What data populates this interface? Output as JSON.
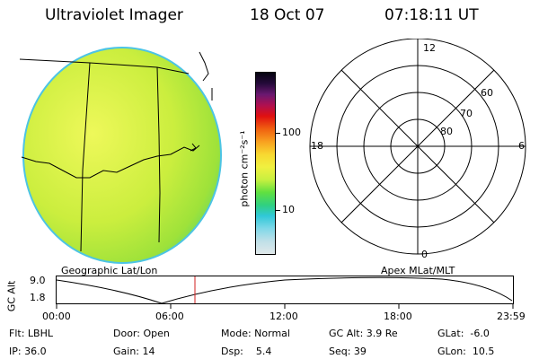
{
  "header": {
    "title": "Ultraviolet Imager",
    "date": "18 Oct 07",
    "time": "07:18:11 UT"
  },
  "image_panel": {
    "caption": "Geographic Lat/Lon",
    "colors": {
      "fill_main": "#d4f040",
      "fill_edge": "#8fe23a",
      "rim": "#40c8e0"
    }
  },
  "colorbar": {
    "unit_label": "photon cm⁻²s⁻¹",
    "ticks": [
      "100",
      "10"
    ],
    "scale": "log"
  },
  "polar_plot": {
    "caption": "Apex MLat/MLT",
    "mlt_labels": {
      "top": "12",
      "left": "18",
      "right": "6",
      "bottom": "0"
    },
    "lat_labels": [
      "60",
      "70",
      "80"
    ]
  },
  "altitude_plot": {
    "ylabel": "GC Alt",
    "y_ticks": [
      "9.0",
      "1.8"
    ],
    "x_ticks": [
      "00:00",
      "06:00",
      "12:00",
      "18:00",
      "23:59"
    ],
    "current_marker_time": "07:18"
  },
  "status": {
    "flt": "Flt: LBHL",
    "door": "Door: Open",
    "mode": "Mode: Normal",
    "gc_alt": "GC Alt: 3.9 Re",
    "glat": "GLat:  -6.0",
    "ip": "IP: 36.0",
    "gain": "Gain: 14",
    "dsp": "Dsp:    5.4",
    "seq": "Seq: 39",
    "glon": "GLon:  10.5"
  }
}
